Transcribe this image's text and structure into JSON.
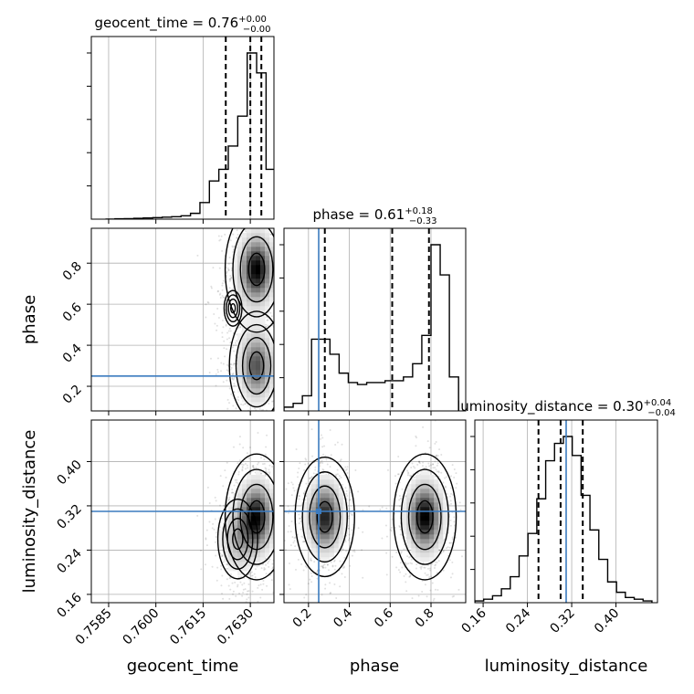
{
  "chart_data": {
    "type": "corner",
    "parameters": [
      "geocent_time",
      "phase",
      "luminosity_distance"
    ],
    "truths": {
      "phase": 0.25,
      "luminosity_distance": 0.31
    },
    "truth_color": "#3b7bbf",
    "quantile_line_color": "#000000",
    "titles": [
      {
        "param": "geocent_time",
        "prefix": "geocent_time = 0.76",
        "plus": "+0.00",
        "minus": "−0.00"
      },
      {
        "param": "phase",
        "prefix": "phase = 0.61",
        "plus": "+0.18",
        "minus": "−0.33"
      },
      {
        "param": "luminosity_distance",
        "prefix": "luminosity_distance = 0.30",
        "plus": "+0.04",
        "minus": "−0.04"
      }
    ],
    "axes": {
      "geocent_time": {
        "range": [
          0.75795,
          0.76375
        ],
        "ticks": [
          0.7585,
          0.76,
          0.7615,
          0.763
        ],
        "tick_labels": [
          "0.7585",
          "0.7600",
          "0.7615",
          "0.7630"
        ],
        "label": "geocent_time"
      },
      "phase": {
        "range": [
          0.08,
          0.97
        ],
        "ticks": [
          0.2,
          0.4,
          0.6,
          0.8
        ],
        "tick_labels": [
          "0.2",
          "0.4",
          "0.6",
          "0.8"
        ],
        "label": "phase"
      },
      "luminosity_distance": {
        "range": [
          0.145,
          0.475
        ],
        "ticks": [
          0.16,
          0.24,
          0.32,
          0.4
        ],
        "tick_labels": [
          "0.16",
          "0.24",
          "0.32",
          "0.40"
        ],
        "label": "luminosity_distance"
      }
    },
    "histograms": {
      "geocent_time": {
        "edges": [
          0.7584,
          0.7587,
          0.759,
          0.7593,
          0.7596,
          0.7599,
          0.7602,
          0.7605,
          0.7608,
          0.7611,
          0.7614,
          0.7617,
          0.762,
          0.7623,
          0.7626,
          0.7629,
          0.7632,
          0.7635,
          0.7638
        ],
        "counts": [
          0.0,
          0.002,
          0.003,
          0.005,
          0.007,
          0.009,
          0.012,
          0.015,
          0.02,
          0.035,
          0.1,
          0.23,
          0.3,
          0.44,
          0.62,
          1.0,
          0.88,
          0.3
        ],
        "quantiles": [
          0.76222,
          0.763,
          0.76335
        ]
      },
      "phase": {
        "edges": [
          0.08,
          0.125,
          0.17,
          0.215,
          0.26,
          0.305,
          0.35,
          0.395,
          0.44,
          0.485,
          0.53,
          0.575,
          0.62,
          0.665,
          0.71,
          0.755,
          0.8,
          0.845,
          0.89,
          0.935
        ],
        "counts": [
          0.02,
          0.04,
          0.08,
          0.38,
          0.38,
          0.3,
          0.2,
          0.15,
          0.14,
          0.15,
          0.15,
          0.16,
          0.16,
          0.18,
          0.25,
          0.4,
          0.88,
          0.72,
          0.18
        ],
        "quantiles": [
          0.28,
          0.61,
          0.79
        ]
      },
      "luminosity_distance": {
        "edges": [
          0.145,
          0.161,
          0.177,
          0.193,
          0.209,
          0.225,
          0.241,
          0.257,
          0.273,
          0.289,
          0.305,
          0.321,
          0.337,
          0.353,
          0.369,
          0.385,
          0.401,
          0.417,
          0.433,
          0.449,
          0.465
        ],
        "counts": [
          0.01,
          0.02,
          0.04,
          0.08,
          0.15,
          0.27,
          0.4,
          0.6,
          0.82,
          0.92,
          0.96,
          0.85,
          0.62,
          0.42,
          0.25,
          0.12,
          0.06,
          0.03,
          0.02,
          0.01
        ],
        "quantiles": [
          0.26,
          0.3,
          0.34
        ]
      }
    },
    "densities_2d": {
      "phase_vs_geocent_time": {
        "x": "geocent_time",
        "y": "phase",
        "modes": [
          {
            "x": 0.7632,
            "y": 0.77,
            "weight": 1.0
          },
          {
            "x": 0.7632,
            "y": 0.3,
            "weight": 0.75
          },
          {
            "x": 0.76245,
            "y": 0.58,
            "weight": 0.08
          }
        ]
      },
      "luminosity_distance_vs_geocent_time": {
        "x": "geocent_time",
        "y": "luminosity_distance",
        "modes": [
          {
            "x": 0.7632,
            "y": 0.3,
            "weight": 1.0
          },
          {
            "x": 0.7626,
            "y": 0.26,
            "weight": 0.4
          }
        ]
      },
      "luminosity_distance_vs_phase": {
        "x": "phase",
        "y": "luminosity_distance",
        "modes": [
          {
            "x": 0.28,
            "y": 0.3,
            "weight": 0.9
          },
          {
            "x": 0.77,
            "y": 0.3,
            "weight": 1.0
          }
        ]
      }
    },
    "grid": true
  }
}
